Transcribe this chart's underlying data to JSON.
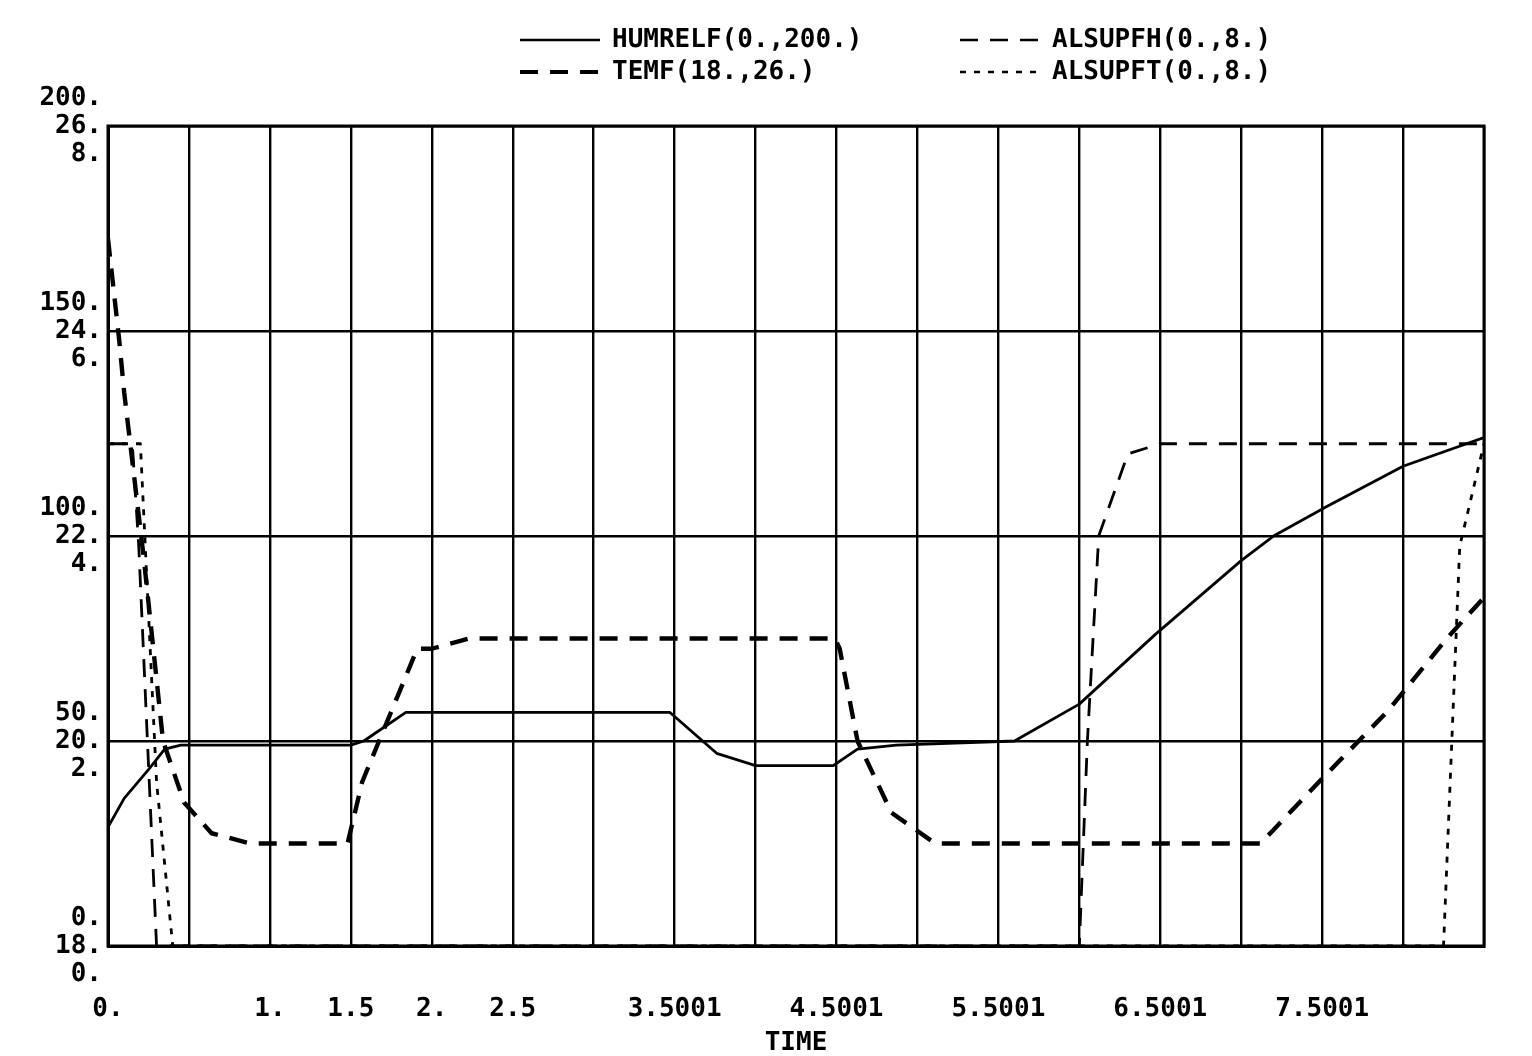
{
  "chart_data": {
    "type": "line",
    "xlabel": "TIME",
    "legend": "top",
    "grid": true,
    "marker": "none",
    "xlim": [
      0,
      8.5
    ],
    "xticks": [
      {
        "value": 0,
        "label": "0."
      },
      {
        "value": 0.5,
        "label": null
      },
      {
        "value": 1,
        "label": "1."
      },
      {
        "value": 1.5,
        "label": "1.5"
      },
      {
        "value": 2,
        "label": "2."
      },
      {
        "value": 2.5,
        "label": "2.5"
      },
      {
        "value": 3,
        "label": null
      },
      {
        "value": 3.5001,
        "label": "3.5001"
      },
      {
        "value": 4,
        "label": null
      },
      {
        "value": 4.5001,
        "label": "4.5001"
      },
      {
        "value": 5,
        "label": null
      },
      {
        "value": 5.5001,
        "label": "5.5001"
      },
      {
        "value": 6,
        "label": null
      },
      {
        "value": 6.5001,
        "label": "6.5001"
      },
      {
        "value": 7,
        "label": null
      },
      {
        "value": 7.5001,
        "label": "7.5001"
      },
      {
        "value": 8,
        "label": null
      },
      {
        "value": 8.5,
        "label": null
      }
    ],
    "ylim": [
      0,
      200
    ],
    "yticks": [
      {
        "value": 0,
        "label": "0."
      },
      {
        "value": 50,
        "label": "50."
      },
      {
        "value": 100,
        "label": "100."
      },
      {
        "value": 150,
        "label": "150."
      },
      {
        "value": 200,
        "label": "200."
      }
    ],
    "y2lim": [
      18,
      26
    ],
    "y2ticks": [
      {
        "value": 18,
        "label": "18."
      },
      {
        "value": 20,
        "label": "20."
      },
      {
        "value": 22,
        "label": "22."
      },
      {
        "value": 24,
        "label": "24."
      },
      {
        "value": 26,
        "label": "26."
      }
    ],
    "y3lim": [
      0,
      8
    ],
    "y3ticks": [
      {
        "value": 0,
        "label": "0."
      },
      {
        "value": 2,
        "label": "2."
      },
      {
        "value": 4,
        "label": "4."
      },
      {
        "value": 6,
        "label": "6."
      },
      {
        "value": 8,
        "label": "8."
      }
    ],
    "series": [
      {
        "name": "HUMRELF(0.,200.)",
        "color": "#000000",
        "line_style": "solid",
        "axis": "y",
        "x": [
          0,
          0.1,
          0.25,
          0.35,
          0.45,
          1.5,
          1.58,
          1.84,
          3.47,
          3.76,
          4.0,
          4.48,
          4.63,
          4.87,
          5.6,
          6.0,
          6.47,
          7.0,
          7.2,
          7.52,
          8.0,
          8.5
        ],
        "values": [
          29,
          36,
          43,
          48,
          49,
          49,
          50,
          57,
          57,
          47,
          44,
          44,
          48,
          49,
          50,
          59,
          76,
          94,
          100,
          107,
          117,
          124
        ]
      },
      {
        "name": "TEMF(18.,26.)",
        "color": "#000000",
        "line_style": "dashed",
        "axis": "y2",
        "x": [
          0,
          0.07,
          0.1,
          0.22,
          0.34,
          0.47,
          0.64,
          0.88,
          1.15,
          1.48,
          1.57,
          1.91,
          2.0,
          2.23,
          4.49,
          4.52,
          4.63,
          4.84,
          5.11,
          5.51,
          7.12,
          7.48,
          7.91,
          8.27,
          8.5
        ],
        "values": [
          24.9,
          23.9,
          23.4,
          21.8,
          20.0,
          19.4,
          19.1,
          19.0,
          19.0,
          19.0,
          19.6,
          20.9,
          20.9,
          21.0,
          21.0,
          20.9,
          20.0,
          19.3,
          19.0,
          19.0,
          19.0,
          19.6,
          20.3,
          21.0,
          21.4
        ]
      },
      {
        "name": "ALSUPFH(0.,8.)",
        "color": "#000000",
        "line_style": "dashed",
        "axis": "y3",
        "x": [
          0,
          0.15,
          0.19,
          0.3,
          6.0,
          6.05,
          6.12,
          6.3,
          6.5,
          8.5
        ],
        "values": [
          4.9,
          4.9,
          3.9,
          0,
          0,
          2.0,
          4.0,
          4.8,
          4.9,
          4.9
        ]
      },
      {
        "name": "ALSUPFT(0.,8.)",
        "color": "#000000",
        "line_style": "dotted",
        "axis": "y3",
        "x": [
          0,
          0.2,
          0.3,
          0.4,
          8.25,
          8.35,
          8.5
        ],
        "values": [
          4.9,
          4.9,
          1.6,
          0,
          0,
          3.9,
          4.9
        ]
      }
    ]
  }
}
